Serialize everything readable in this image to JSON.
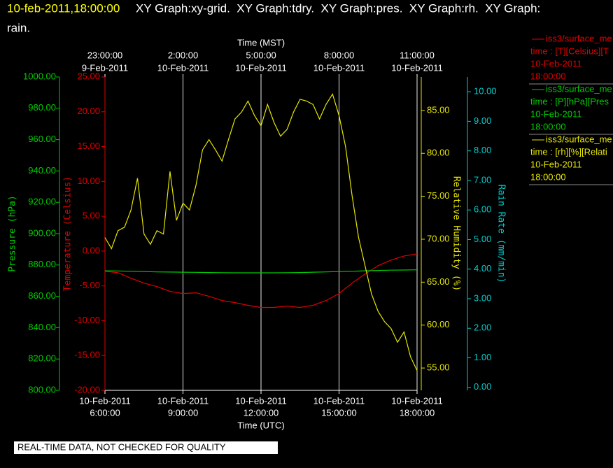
{
  "chart_data": {
    "type": "line",
    "title": "10-feb-2011,18:00:00",
    "subtitle": [
      "XY Graph:xy-grid.  XY Graph:tdry.  XY Graph:pres.  XY Graph:rh.  XY Graph:",
      "rain."
    ],
    "xlabel": "Time (UTC)",
    "x2label": "Time (MST)",
    "annotation": "REAL-TIME DATA, NOT CHECKED FOR QUALITY",
    "grid": true,
    "xlim": [
      6,
      18
    ],
    "xticks": [
      {
        "value": 6,
        "label": [
          "10-Feb-2011",
          "6:00:00"
        ]
      },
      {
        "value": 9,
        "label": [
          "10-Feb-2011",
          "9:00:00"
        ]
      },
      {
        "value": 12,
        "label": [
          "10-Feb-2011",
          "12:00:00"
        ]
      },
      {
        "value": 15,
        "label": [
          "10-Feb-2011",
          "15:00:00"
        ]
      },
      {
        "value": 18,
        "label": [
          "10-Feb-2011",
          "18:00:00"
        ]
      }
    ],
    "x2ticks": [
      {
        "value": 6,
        "label": [
          "23:00:00",
          "9-Feb-2011"
        ]
      },
      {
        "value": 9,
        "label": [
          "2:00:00",
          "10-Feb-2011"
        ]
      },
      {
        "value": 12,
        "label": [
          "5:00:00",
          "10-Feb-2011"
        ]
      },
      {
        "value": 15,
        "label": [
          "8:00:00",
          "10-Feb-2011"
        ]
      },
      {
        "value": 18,
        "label": [
          "11:00:00",
          "10-Feb-2011"
        ]
      }
    ],
    "axes": [
      {
        "label": "Pressure (hPa)",
        "color": "#00cc00",
        "ylim": [
          800,
          1000
        ],
        "yticks": [
          {
            "value": 800,
            "label": "800.00"
          },
          {
            "value": 820,
            "label": "820.00"
          },
          {
            "value": 840,
            "label": "840.00"
          },
          {
            "value": 860,
            "label": "860.00"
          },
          {
            "value": 880,
            "label": "880.00"
          },
          {
            "value": 900,
            "label": "900.00"
          },
          {
            "value": 920,
            "label": "920.00"
          },
          {
            "value": 940,
            "label": "940.00"
          },
          {
            "value": 960,
            "label": "960.00"
          },
          {
            "value": 980,
            "label": "980.00"
          },
          {
            "value": 1000,
            "label": "1000.00"
          }
        ]
      },
      {
        "label": "Temperature (Celsius)",
        "color": "#e00000",
        "ylim": [
          -20,
          25
        ],
        "yticks": [
          {
            "value": -20,
            "label": "-20.00"
          },
          {
            "value": -15,
            "label": "-15.00"
          },
          {
            "value": -10,
            "label": "-10.00"
          },
          {
            "value": -5,
            "label": "-5.00"
          },
          {
            "value": 0,
            "label": "0.00"
          },
          {
            "value": 5,
            "label": "5.00"
          },
          {
            "value": 10,
            "label": "10.00"
          },
          {
            "value": 15,
            "label": "15.00"
          },
          {
            "value": 20,
            "label": "20.00"
          },
          {
            "value": 25,
            "label": "25.00"
          }
        ]
      },
      {
        "label": "Relative Humidity (%)",
        "color": "#e6e600",
        "ylim": [
          52.4,
          88.9
        ],
        "yticks": [
          {
            "value": 55,
            "label": "55.00"
          },
          {
            "value": 60,
            "label": "60.00"
          },
          {
            "value": 65,
            "label": "65.00"
          },
          {
            "value": 70,
            "label": "70.00"
          },
          {
            "value": 75,
            "label": "75.00"
          },
          {
            "value": 80,
            "label": "80.00"
          },
          {
            "value": 85,
            "label": "85.00"
          }
        ]
      },
      {
        "label": "Rain Rate (mm/min)",
        "color": "#00cccc",
        "ylim": [
          -0.1,
          10.5
        ],
        "yticks": [
          {
            "value": 0,
            "label": "0.00"
          },
          {
            "value": 1,
            "label": "1.00"
          },
          {
            "value": 2,
            "label": "2.00"
          },
          {
            "value": 3,
            "label": "3.00"
          },
          {
            "value": 4,
            "label": "4.00"
          },
          {
            "value": 5,
            "label": "5.00"
          },
          {
            "value": 6,
            "label": "6.00"
          },
          {
            "value": 7,
            "label": "7.00"
          },
          {
            "value": 8,
            "label": "8.00"
          },
          {
            "value": 9,
            "label": "9.00"
          },
          {
            "value": 10,
            "label": "10.00"
          }
        ]
      }
    ],
    "series": [
      {
        "name": "iss3/surface_me",
        "legend": [
          "time : [T][Celsius][T",
          "10-Feb-2011",
          "18:00:00"
        ],
        "color": "#e00000",
        "axis": 1,
        "x": [
          6,
          6.5,
          7,
          7.5,
          8,
          8.5,
          9,
          9.5,
          10,
          10.5,
          11,
          11.5,
          12,
          12.5,
          13,
          13.5,
          14,
          14.5,
          15,
          15.5,
          16,
          16.5,
          17,
          17.5,
          18
        ],
        "values": [
          -2.9,
          -3.1,
          -3.9,
          -4.6,
          -5.1,
          -5.8,
          -6.1,
          -6.0,
          -6.5,
          -7.1,
          -7.4,
          -7.8,
          -8.1,
          -8.1,
          -7.9,
          -8.1,
          -7.8,
          -7.1,
          -6.1,
          -4.6,
          -3.3,
          -2.1,
          -1.3,
          -0.7,
          -0.4
        ]
      },
      {
        "name": "iss3/surface_me",
        "legend": [
          "time : [P][hPa][Pres",
          "10-Feb-2011",
          "18:00:00"
        ],
        "color": "#00cc00",
        "axis": 0,
        "x": [
          6,
          6.5,
          7,
          7.5,
          8,
          8.5,
          9,
          9.5,
          10,
          10.5,
          11,
          11.5,
          12,
          12.5,
          13,
          13.5,
          14,
          14.5,
          15,
          15.5,
          16,
          16.5,
          17,
          17.5,
          18
        ],
        "values": [
          876.3,
          876.2,
          876.0,
          875.8,
          875.6,
          875.5,
          875.4,
          875.3,
          875.2,
          875.1,
          875.0,
          875.0,
          875.0,
          875.0,
          875.1,
          875.2,
          875.4,
          875.6,
          875.8,
          876.0,
          876.3,
          876.5,
          876.7,
          876.8,
          876.9
        ]
      },
      {
        "name": "iss3/surface_me",
        "legend": [
          "time : [rh][%][Relati",
          "10-Feb-2011",
          "18:00:00"
        ],
        "color": "#e6e600",
        "axis": 2,
        "x": [
          6,
          6.25,
          6.5,
          6.75,
          7,
          7.25,
          7.5,
          7.75,
          8,
          8.25,
          8.5,
          8.75,
          9,
          9.25,
          9.5,
          9.75,
          10,
          10.25,
          10.5,
          10.75,
          11,
          11.25,
          11.5,
          11.75,
          12,
          12.25,
          12.5,
          12.75,
          13,
          13.25,
          13.5,
          13.75,
          14,
          14.25,
          14.5,
          14.75,
          15,
          15.25,
          15.5,
          15.75,
          16,
          16.25,
          16.5,
          16.75,
          17,
          17.25,
          17.5,
          17.75,
          18
        ],
        "values": [
          70.2,
          68.9,
          71.0,
          71.4,
          73.4,
          77.1,
          70.6,
          69.4,
          71.0,
          70.6,
          77.9,
          72.2,
          74.2,
          73.4,
          76.3,
          80.4,
          81.6,
          80.4,
          79.1,
          81.6,
          84.0,
          84.8,
          86.1,
          84.4,
          83.2,
          85.7,
          83.6,
          82.0,
          82.8,
          84.8,
          86.3,
          86.1,
          85.7,
          84.0,
          85.7,
          86.9,
          84.4,
          80.8,
          75.1,
          70.2,
          66.9,
          63.6,
          61.6,
          60.4,
          59.6,
          58.0,
          59.2,
          56.3,
          54.7
        ]
      }
    ]
  }
}
